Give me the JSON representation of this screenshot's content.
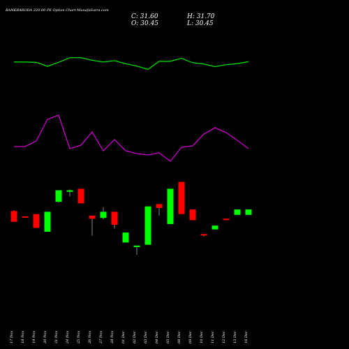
{
  "title": "BANKBARODA 220.00  PE Option  Chart MunafaSutra.com",
  "ohlc": {
    "close": "C: 31.60",
    "high": "H: 31.70",
    "open": "O: 30.45",
    "low": "L: 30.45"
  },
  "colors": {
    "background": "#000000",
    "up": "#00ff00",
    "down": "#ff0000",
    "line_top": "#00dd00",
    "line_mid": "#cc00cc",
    "wick": "#888888"
  },
  "chart_data": {
    "type": "candlestick",
    "categories": [
      "17 Nov",
      "18 Nov",
      "19 Nov",
      "20 Nov",
      "21 Nov",
      "24 Nov",
      "25 Nov",
      "26 Nov",
      "27 Nov",
      "28 Nov",
      "01 Dec",
      "02 Dec",
      "03 Dec",
      "04 Dec",
      "05 Dec",
      "08 Dec",
      "09 Dec",
      "10 Dec",
      "11 Dec",
      "12 Dec",
      "15 Dec",
      "16 Dec"
    ],
    "candles": [
      {
        "o": 57,
        "h": 58,
        "l": 43,
        "c": 43
      },
      {
        "o": 50,
        "h": 50,
        "l": 49,
        "c": 49
      },
      {
        "o": 53,
        "h": 53,
        "l": 35,
        "c": 35
      },
      {
        "o": 30,
        "h": 56,
        "l": 30,
        "c": 56
      },
      {
        "o": 69,
        "h": 84,
        "l": 68,
        "c": 84
      },
      {
        "o": 82,
        "h": 85,
        "l": 76,
        "c": 84
      },
      {
        "o": 86,
        "h": 86,
        "l": 67,
        "c": 67
      },
      {
        "o": 51,
        "h": 51,
        "l": 25,
        "c": 47
      },
      {
        "o": 48,
        "h": 62,
        "l": 46,
        "c": 56
      },
      {
        "o": 56,
        "h": 56,
        "l": 34,
        "c": 39
      },
      {
        "o": 16,
        "h": 29,
        "l": 16,
        "c": 29
      },
      {
        "o": 10,
        "h": 12,
        "l": 0,
        "c": 12
      },
      {
        "o": 13,
        "h": 63,
        "l": 13,
        "c": 63
      },
      {
        "o": 66,
        "h": 66,
        "l": 51,
        "c": 61
      },
      {
        "o": 40,
        "h": 86,
        "l": 40,
        "c": 86
      },
      {
        "o": 95,
        "h": 95,
        "l": 53,
        "c": 53
      },
      {
        "o": 59,
        "h": 59,
        "l": 45,
        "c": 45
      },
      {
        "o": 27,
        "h": 27,
        "l": 24,
        "c": 25
      },
      {
        "o": 33,
        "h": 38,
        "l": 33,
        "c": 38
      },
      {
        "o": 47,
        "h": 47,
        "l": 45,
        "c": 46
      },
      {
        "o": 52,
        "h": 59,
        "l": 52,
        "c": 59
      },
      {
        "o": 52,
        "h": 59,
        "l": 52,
        "c": 59
      }
    ],
    "line_top": [
      65,
      65,
      64,
      52,
      64,
      78,
      78,
      70,
      65,
      69,
      60,
      53,
      43,
      67,
      67,
      76,
      63,
      59,
      51,
      57,
      60,
      66
    ],
    "line_mid": [
      30,
      30,
      38,
      69,
      75,
      27,
      32,
      51,
      24,
      40,
      24,
      20,
      18,
      21,
      9,
      29,
      31,
      48,
      57,
      50,
      39,
      27
    ],
    "ylim": [
      0,
      100
    ],
    "grid": false,
    "legend": "none"
  }
}
